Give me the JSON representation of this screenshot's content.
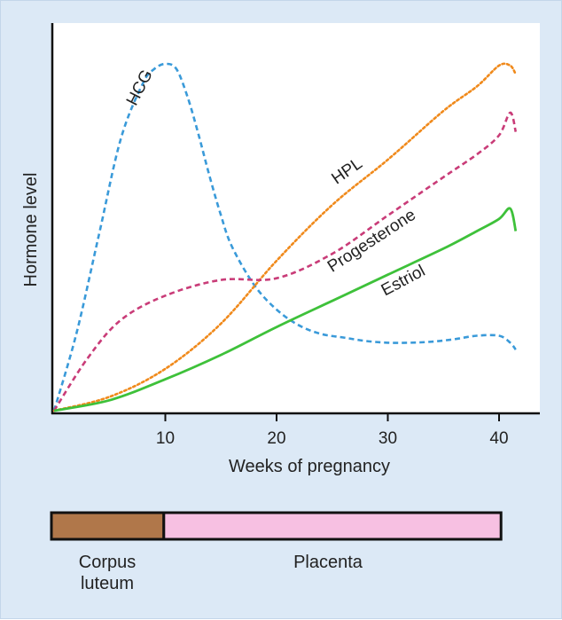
{
  "chart_data": {
    "type": "line",
    "xlabel": "Weeks of pregnancy",
    "ylabel": "Hormone level",
    "xlim": [
      0,
      42
    ],
    "ylim": [
      0,
      100
    ],
    "x_ticks": [
      10,
      20,
      30,
      40
    ],
    "grid": false,
    "series": [
      {
        "name": "HCG",
        "color": "#3a9ad9",
        "style": "dashed",
        "x": [
          0,
          2,
          4,
          6,
          8,
          9,
          10,
          11,
          12,
          13,
          14,
          15,
          16,
          18,
          20,
          22,
          24,
          26,
          28,
          30,
          32,
          34,
          36,
          38,
          40,
          41,
          41.5
        ],
        "y": [
          0,
          22,
          50,
          78,
          94,
          98,
          99.5,
          98,
          90,
          79,
          67,
          56,
          47,
          36,
          29,
          24.5,
          22,
          21,
          20,
          19.5,
          19.5,
          19.8,
          20.5,
          21.5,
          21.5,
          19.5,
          17.5
        ]
      },
      {
        "name": "HPL",
        "color": "#f08a1c",
        "style": "dotted",
        "x": [
          0,
          5,
          10,
          15,
          20,
          25,
          30,
          35,
          38,
          40,
          41,
          41.5
        ],
        "y": [
          0,
          4,
          12,
          25,
          43,
          59,
          72,
          86,
          93,
          99,
          99,
          96.5
        ]
      },
      {
        "name": "Progesterone",
        "color": "#c93c78",
        "style": "dashed",
        "x": [
          0,
          3,
          6,
          10,
          15,
          20,
          25,
          30,
          35,
          38,
          40,
          41,
          41.5
        ],
        "y": [
          0,
          15,
          26,
          33,
          37.5,
          38,
          45,
          56,
          67,
          73.5,
          79,
          85.5,
          80
        ]
      },
      {
        "name": "Estriol",
        "color": "#3ec13a",
        "style": "solid",
        "x": [
          0,
          5,
          10,
          15,
          20,
          25,
          30,
          35,
          38,
          40,
          41,
          41.5
        ],
        "y": [
          0,
          3,
          9,
          16,
          24,
          31.5,
          39,
          46.5,
          51.5,
          55,
          58,
          51.5
        ]
      }
    ],
    "phases": [
      {
        "label": "Corpus\nluteum",
        "start": 0,
        "end": 10,
        "color": "#b0774a"
      },
      {
        "label": "Placenta",
        "start": 10,
        "end": 40,
        "color": "#f7c0e2"
      }
    ]
  }
}
